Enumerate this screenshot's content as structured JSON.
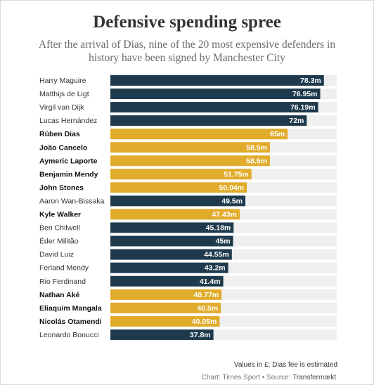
{
  "header": {
    "title": "Defensive spending spree",
    "subtitle": "After the arrival of Dias, nine of the 20 most expensive defenders in history have been signed by Manchester City"
  },
  "footer": {
    "note": "Values in £; Dias fee is estimated",
    "credit_prefix": "Chart: Times Sport • Source: ",
    "credit_source": "Transfermarkt"
  },
  "colors": {
    "manchester_city": "#e1ac2c",
    "other": "#1f3a4d",
    "track": "#efefef",
    "value_on_dark": "#ffffff",
    "value_on_gold": "#ffffff"
  },
  "chart_data": {
    "type": "bar",
    "orientation": "horizontal",
    "categories": [
      "Harry Maguire",
      "Matthijs de Ligt",
      "Virgil van Dijk",
      "Lucas Hernández",
      "Rúben Dias",
      "João Cancelo",
      "Aymeric Laporte",
      "Benjamin Mendy",
      "John Stones",
      "Aaron Wan-Bissaka",
      "Kyle Walker",
      "Ben Chilwell",
      "Éder Militão",
      "David Luiz",
      "Ferland Mendy",
      "Rio Ferdinand",
      "Nathan Aké",
      "Eliaquim Mangala",
      "Nicolás Otamendi",
      "Leonardo Bonucci"
    ],
    "values": [
      78.3,
      76.95,
      76.19,
      72,
      65,
      58.5,
      58.5,
      51.75,
      50.04,
      49.5,
      47.43,
      45.18,
      45,
      44.55,
      43.2,
      41.4,
      40.77,
      40.5,
      40.05,
      37.8
    ],
    "value_labels": [
      "78.3m",
      "76.95m",
      "76.19m",
      "72m",
      "65m",
      "58.5m",
      "58.5m",
      "51.75m",
      "50.04m",
      "49.5m",
      "47.43m",
      "45.18m",
      "45m",
      "44.55m",
      "43.2m",
      "41.4m",
      "40.77m",
      "40.5m",
      "40.05m",
      "37.8m"
    ],
    "manchester_city": [
      false,
      false,
      false,
      false,
      true,
      true,
      true,
      true,
      true,
      false,
      true,
      false,
      false,
      false,
      false,
      false,
      true,
      true,
      true,
      false
    ],
    "xlim": [
      0,
      83
    ]
  }
}
